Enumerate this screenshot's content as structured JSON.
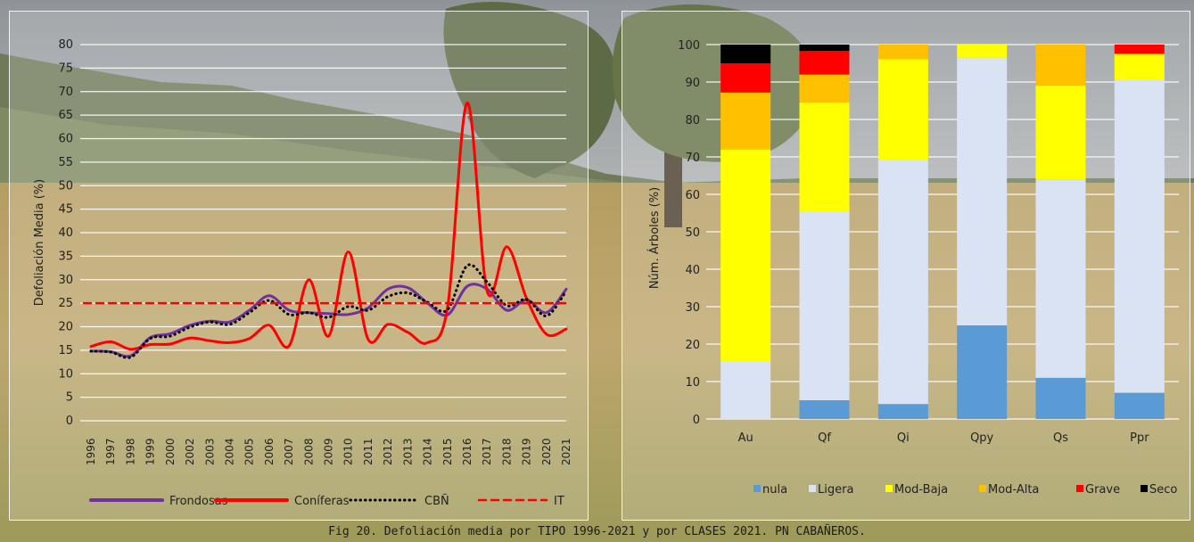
{
  "caption": "Fig 20. Defoliación media por TIPO 1996-2021 y por CLASES 2021. PN CABAÑEROS.",
  "chart_data": [
    {
      "type": "line",
      "ylabel": "Defoliación Media (%)",
      "ylim": [
        0,
        80
      ],
      "yticks": [
        0,
        5,
        10,
        15,
        20,
        25,
        30,
        35,
        40,
        45,
        50,
        55,
        60,
        65,
        70,
        75,
        80
      ],
      "x": [
        "1996",
        "1997",
        "1998",
        "1999",
        "2000",
        "2002",
        "2003",
        "2004",
        "2005",
        "2006",
        "2007",
        "2008",
        "2009",
        "2010",
        "2011",
        "2012",
        "2013",
        "2014",
        "2015",
        "2016",
        "2017",
        "2018",
        "2019",
        "2020",
        "2021"
      ],
      "grid": true,
      "legend_position": "bottom",
      "series": [
        {
          "name": "Frondosas",
          "color": "#7030A0",
          "style": "solid",
          "values": [
            14.8,
            14.7,
            13.8,
            17.7,
            18.5,
            20.3,
            21.2,
            21.0,
            23.5,
            26.6,
            23.5,
            23.0,
            22.8,
            22.6,
            24.0,
            28.0,
            28.3,
            25.0,
            22.5,
            28.6,
            28.0,
            23.5,
            25.7,
            23.0,
            28.0
          ]
        },
        {
          "name": "Coníferas",
          "color": "#FF0000",
          "style": "solid",
          "values": [
            15.8,
            16.8,
            15.2,
            16.2,
            16.3,
            17.6,
            17.0,
            16.6,
            17.5,
            20.3,
            15.9,
            30.0,
            18.0,
            35.9,
            17.3,
            20.5,
            18.8,
            16.6,
            24.0,
            67.6,
            27.6,
            37.0,
            26.0,
            18.4,
            19.5
          ]
        },
        {
          "name": "CBÑ",
          "color": "#000000",
          "style": "dotted",
          "values": [
            14.8,
            14.6,
            13.5,
            17.5,
            18.0,
            19.9,
            21.0,
            20.5,
            23.0,
            25.6,
            22.6,
            23.0,
            22.0,
            24.3,
            23.5,
            26.4,
            27.2,
            25.2,
            23.6,
            33.0,
            29.5,
            24.5,
            25.8,
            22.3,
            27.6
          ]
        },
        {
          "name": "IT",
          "color": "#FF0000",
          "style": "dashed",
          "values": [
            25,
            25,
            25,
            25,
            25,
            25,
            25,
            25,
            25,
            25,
            25,
            25,
            25,
            25,
            25,
            25,
            25,
            25,
            25,
            25,
            25,
            25,
            25,
            25,
            25
          ]
        }
      ]
    },
    {
      "type": "bar",
      "stacked": true,
      "ylabel": "Núm. Árboles (%)",
      "ylim": [
        0,
        100
      ],
      "yticks": [
        0,
        10,
        20,
        30,
        40,
        50,
        60,
        70,
        80,
        90,
        100
      ],
      "categories": [
        "Au",
        "Qf",
        "Qi",
        "Qpy",
        "Qs",
        "Ppr"
      ],
      "grid": true,
      "legend_position": "bottom",
      "series": [
        {
          "name": "nula",
          "color": "#5B9BD5",
          "values": [
            0,
            5,
            4,
            25,
            11,
            7
          ]
        },
        {
          "name": "Ligera",
          "color": "#DAE3F3",
          "values": [
            15.5,
            50.5,
            65.3,
            71.5,
            53,
            83.5
          ]
        },
        {
          "name": "Mod-Baja",
          "color": "#FFFF00",
          "values": [
            56.5,
            29,
            26.8,
            3.5,
            25,
            7
          ]
        },
        {
          "name": "Mod-Alta",
          "color": "#FFC000",
          "values": [
            15.2,
            7.5,
            3.9,
            0,
            11,
            0
          ]
        },
        {
          "name": "Grave",
          "color": "#FF0000",
          "values": [
            7.8,
            6.3,
            0,
            0,
            0,
            2.5
          ]
        },
        {
          "name": "Seco",
          "color": "#000000",
          "values": [
            5,
            1.7,
            0,
            0,
            0,
            0
          ]
        }
      ]
    }
  ]
}
